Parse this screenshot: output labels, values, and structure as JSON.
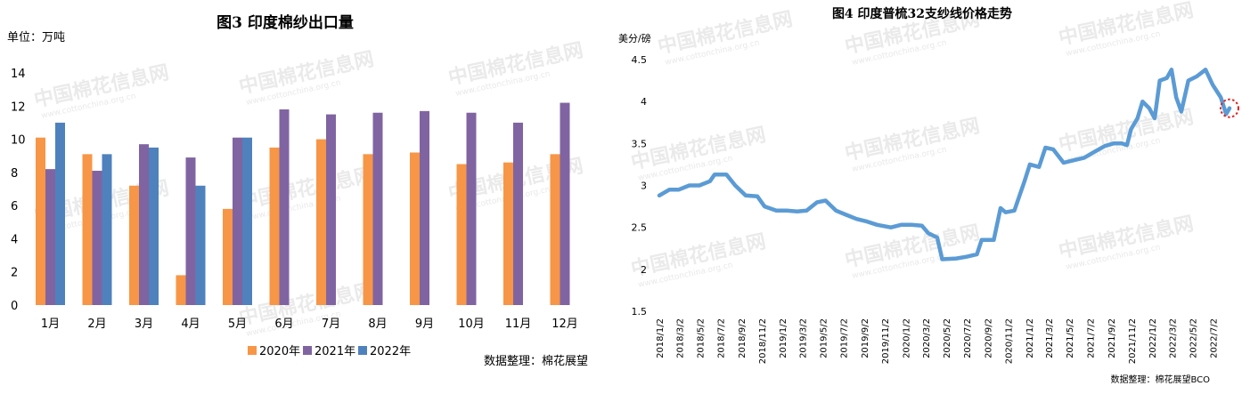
{
  "chart_data": [
    {
      "type": "bar",
      "title": "图3  印度棉纱出口量",
      "unit_label": "单位：万吨",
      "source": "数据整理：棉花展望",
      "categories": [
        "1月",
        "2月",
        "3月",
        "4月",
        "5月",
        "6月",
        "7月",
        "8月",
        "9月",
        "10月",
        "11月",
        "12月"
      ],
      "ylim": [
        0,
        14
      ],
      "yticks": [
        0,
        2,
        4,
        6,
        8,
        10,
        12,
        14
      ],
      "legend_position": "bottom",
      "series": [
        {
          "name": "2020年",
          "color": "#f79646",
          "values": [
            10.1,
            9.1,
            7.2,
            1.8,
            5.8,
            9.5,
            10.0,
            9.1,
            9.2,
            8.5,
            8.6,
            9.1
          ]
        },
        {
          "name": "2021年",
          "color": "#8064a2",
          "values": [
            8.2,
            8.1,
            9.7,
            8.9,
            10.1,
            11.8,
            11.5,
            11.6,
            11.7,
            11.6,
            11.0,
            12.2
          ]
        },
        {
          "name": "2022年",
          "color": "#4f81bd",
          "values": [
            11.0,
            9.1,
            9.5,
            7.2,
            10.1,
            null,
            null,
            null,
            null,
            null,
            null,
            null
          ]
        }
      ]
    },
    {
      "type": "line",
      "title": "图4 印度普梳32支纱线价格走势",
      "unit_label": "美分/磅",
      "source": "数据整理：棉花展望BCO",
      "ylim": [
        1.5,
        4.5
      ],
      "yticks": [
        "1.5",
        "2",
        "2.5",
        "3",
        "3.5",
        "4",
        "4.5"
      ],
      "x_labels": [
        "2018/1/2",
        "2018/3/2",
        "2018/5/2",
        "2018/7/2",
        "2018/9/2",
        "2018/11/2",
        "2019/1/2",
        "2019/3/2",
        "2019/5/2",
        "2019/7/2",
        "2019/9/2",
        "2019/11/2",
        "2020/1/2",
        "2020/3/2",
        "2020/5/2",
        "2020/7/2",
        "2020/9/2",
        "2020/11/2",
        "2021/1/2",
        "2021/3/2",
        "2021/5/2",
        "2021/7/2",
        "2021/9/2",
        "2021/11/2",
        "2022/1/2",
        "2022/3/2",
        "2022/5/2",
        "2022/7/2"
      ],
      "x_range": [
        "2018/1/2",
        "2022/8/20"
      ],
      "line_color": "#5b9bd5",
      "highlight_color": "#e02020",
      "points": [
        [
          "2018/1/2",
          2.88
        ],
        [
          "2018/2/1",
          2.95
        ],
        [
          "2018/3/1",
          2.95
        ],
        [
          "2018/4/1",
          3.0
        ],
        [
          "2018/5/1",
          3.0
        ],
        [
          "2018/6/1",
          3.05
        ],
        [
          "2018/6/15",
          3.13
        ],
        [
          "2018/7/20",
          3.13
        ],
        [
          "2018/8/15",
          3.0
        ],
        [
          "2018/9/15",
          2.88
        ],
        [
          "2018/10/20",
          2.87
        ],
        [
          "2018/11/10",
          2.75
        ],
        [
          "2018/12/15",
          2.7
        ],
        [
          "2019/1/15",
          2.7
        ],
        [
          "2019/2/15",
          2.69
        ],
        [
          "2019/3/15",
          2.7
        ],
        [
          "2019/4/15",
          2.8
        ],
        [
          "2019/5/10",
          2.82
        ],
        [
          "2019/6/10",
          2.7
        ],
        [
          "2019/7/10",
          2.65
        ],
        [
          "2019/8/10",
          2.6
        ],
        [
          "2019/9/10",
          2.57
        ],
        [
          "2019/10/10",
          2.53
        ],
        [
          "2019/11/20",
          2.5
        ],
        [
          "2019/12/20",
          2.53
        ],
        [
          "2020/1/20",
          2.53
        ],
        [
          "2020/2/20",
          2.52
        ],
        [
          "2020/3/10",
          2.43
        ],
        [
          "2020/4/5",
          2.38
        ],
        [
          "2020/4/20",
          2.12
        ],
        [
          "2020/6/1",
          2.13
        ],
        [
          "2020/7/1",
          2.15
        ],
        [
          "2020/8/1",
          2.18
        ],
        [
          "2020/8/15",
          2.35
        ],
        [
          "2020/9/20",
          2.35
        ],
        [
          "2020/10/10",
          2.73
        ],
        [
          "2020/10/25",
          2.68
        ],
        [
          "2020/11/20",
          2.7
        ],
        [
          "2020/12/20",
          3.05
        ],
        [
          "2021/1/5",
          3.25
        ],
        [
          "2021/2/1",
          3.22
        ],
        [
          "2021/2/20",
          3.45
        ],
        [
          "2021/3/15",
          3.43
        ],
        [
          "2021/4/15",
          3.27
        ],
        [
          "2021/5/15",
          3.3
        ],
        [
          "2021/6/15",
          3.33
        ],
        [
          "2021/7/15",
          3.4
        ],
        [
          "2021/8/15",
          3.47
        ],
        [
          "2021/9/10",
          3.5
        ],
        [
          "2021/10/5",
          3.5
        ],
        [
          "2021/10/20",
          3.48
        ],
        [
          "2021/11/1",
          3.67
        ],
        [
          "2021/11/20",
          3.8
        ],
        [
          "2021/12/5",
          4.0
        ],
        [
          "2021/12/25",
          3.92
        ],
        [
          "2022/1/10",
          3.8
        ],
        [
          "2022/1/25",
          4.25
        ],
        [
          "2022/2/15",
          4.28
        ],
        [
          "2022/3/1",
          4.38
        ],
        [
          "2022/3/15",
          4.05
        ],
        [
          "2022/3/30",
          3.88
        ],
        [
          "2022/4/20",
          4.25
        ],
        [
          "2022/5/15",
          4.3
        ],
        [
          "2022/6/10",
          4.38
        ],
        [
          "2022/7/1",
          4.2
        ],
        [
          "2022/7/25",
          4.05
        ],
        [
          "2022/8/10",
          3.85
        ],
        [
          "2022/8/20",
          3.92
        ]
      ]
    }
  ],
  "watermark": {
    "text": "中国棉花信息网",
    "url": "www.cottonchina.org.cn"
  }
}
